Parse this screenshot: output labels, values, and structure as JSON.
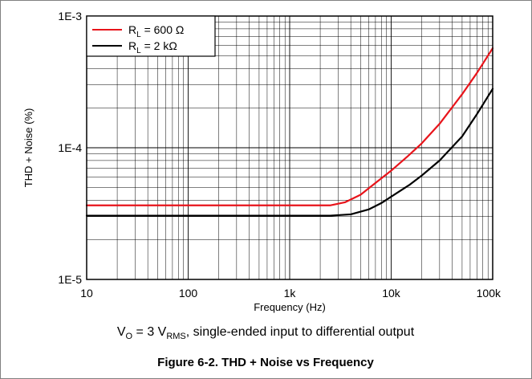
{
  "chart_data": {
    "type": "line",
    "xscale": "log",
    "yscale": "log",
    "xlabel": "Frequency (Hz)",
    "ylabel": "THD + Noise (%)",
    "xlim": [
      10,
      100000
    ],
    "ylim": [
      1e-05,
      0.001
    ],
    "x_ticks": [
      {
        "value": 10,
        "label": "10"
      },
      {
        "value": 100,
        "label": "100"
      },
      {
        "value": 1000,
        "label": "1k"
      },
      {
        "value": 10000,
        "label": "10k"
      },
      {
        "value": 100000,
        "label": "100k"
      }
    ],
    "y_ticks": [
      {
        "value": 1e-05,
        "label": "1E-5"
      },
      {
        "value": 0.0001,
        "label": "1E-4"
      },
      {
        "value": 0.001,
        "label": "1E-3"
      }
    ],
    "grid": true,
    "legend_position": "top-left",
    "series": [
      {
        "name": "R_L = 600 Ω",
        "label_main": "R",
        "label_sub": "L",
        "label_rest": " = 600 Ω",
        "color": "#e8141b",
        "x": [
          10,
          100,
          1000,
          2500,
          3500,
          5000,
          7000,
          10000,
          15000,
          20000,
          30000,
          50000,
          70000,
          100000
        ],
        "y": [
          3.65e-05,
          3.65e-05,
          3.65e-05,
          3.65e-05,
          3.85e-05,
          4.4e-05,
          5.4e-05,
          6.7e-05,
          8.8e-05,
          0.000108,
          0.000152,
          0.000255,
          0.00037,
          0.00057
        ]
      },
      {
        "name": "R_L = 2 kΩ",
        "label_main": "R",
        "label_sub": "L",
        "label_rest": " = 2 kΩ",
        "color": "#000000",
        "x": [
          10,
          100,
          1000,
          2500,
          4000,
          6000,
          8000,
          10000,
          15000,
          20000,
          30000,
          50000,
          70000,
          100000
        ],
        "y": [
          3.05e-05,
          3.05e-05,
          3.05e-05,
          3.05e-05,
          3.12e-05,
          3.4e-05,
          3.8e-05,
          4.25e-05,
          5.2e-05,
          6.15e-05,
          8e-05,
          0.000122,
          0.00018,
          0.00028
        ]
      }
    ]
  },
  "caption": {
    "prefix": "V",
    "prefix_sub": "O",
    "mid": " = 3 V",
    "mid_sub": "RMS",
    "suffix": ", single-ended input to differential output"
  },
  "figure_title": "Figure 6-2. THD + Noise vs Frequency"
}
